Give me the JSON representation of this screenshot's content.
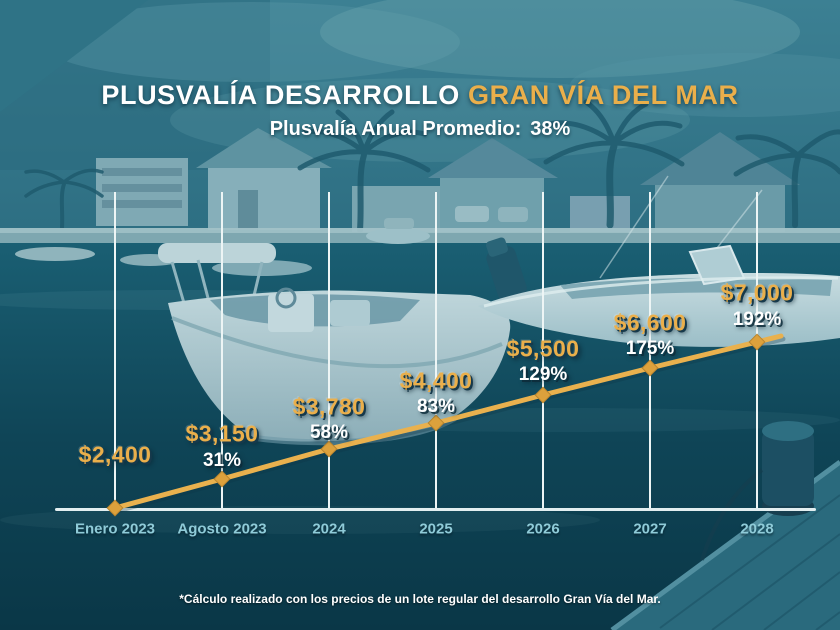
{
  "title": {
    "part1": "PLUSVALÍA DESARROLLO",
    "part2": "GRAN VÍA DEL MAR"
  },
  "subtitle": {
    "label": "Plusvalía Anual Promedio:",
    "value": "38%"
  },
  "footnote": "*Cálculo realizado con los precios de un lote regular del desarrollo Gran Vía del Mar.",
  "colors": {
    "accent_gold": "#EAAF4B",
    "line_gold": "#E9B14E",
    "marker_gold": "#DCA13C",
    "marker_edge": "#B8842E",
    "percent_white": "#FFFFFF",
    "x_axis_label": "#8FCBD8",
    "grid_line": "#EDF5F5",
    "axis_line": "#E2EEF0",
    "background_teal": "#14556A"
  },
  "chart_data": {
    "type": "line",
    "title": "PLUSVALÍA DESARROLLO GRAN VÍA DEL MAR",
    "subtitle": "Plusvalía Anual Promedio: 38%",
    "annual_average_appreciation_pct": 38,
    "xlabel": "",
    "ylabel": "",
    "legend": false,
    "grid": "vertical-only",
    "categories": [
      "Enero 2023",
      "Agosto 2023",
      "2024",
      "2025",
      "2026",
      "2027",
      "2028"
    ],
    "points": [
      {
        "category": "Enero 2023",
        "price_label": "$2,400",
        "price": 2400,
        "percent_label": null,
        "percent": null
      },
      {
        "category": "Agosto 2023",
        "price_label": "$3,150",
        "price": 3150,
        "percent_label": "31%",
        "percent": 31
      },
      {
        "category": "2024",
        "price_label": "$3,780",
        "price": 3780,
        "percent_label": "58%",
        "percent": 58
      },
      {
        "category": "2025",
        "price_label": "$4,400",
        "price": 4400,
        "percent_label": "83%",
        "percent": 83
      },
      {
        "category": "2026",
        "price_label": "$5,500",
        "price": 5500,
        "percent_label": "129%",
        "percent": 129
      },
      {
        "category": "2027",
        "price_label": "$6,600",
        "price": 6600,
        "percent_label": "175%",
        "percent": 175
      },
      {
        "category": "2028",
        "price_label": "$7,000",
        "price": 7000,
        "percent_label": "192%",
        "percent": 192
      }
    ]
  }
}
